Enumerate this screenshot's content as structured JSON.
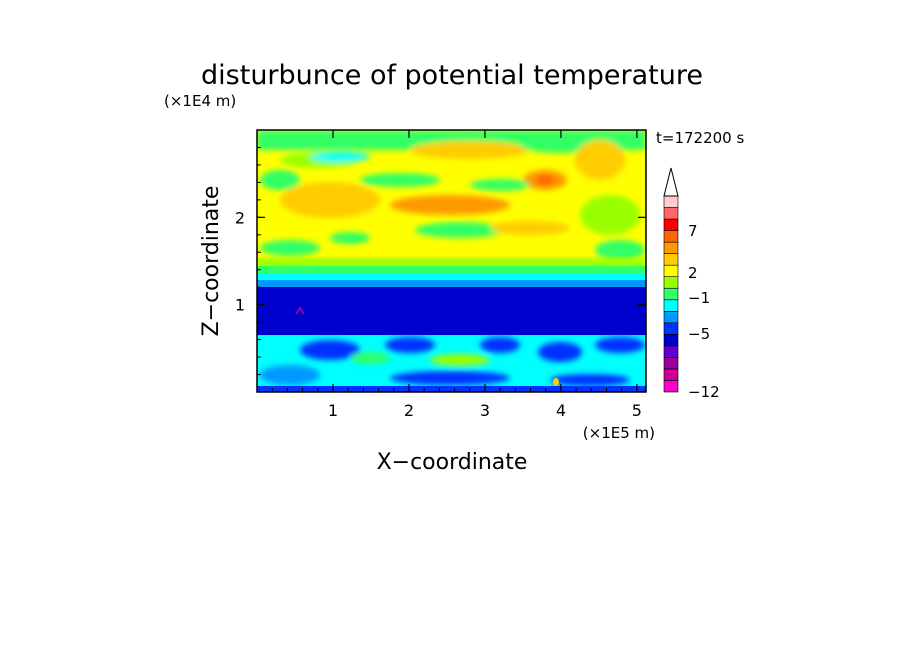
{
  "chart_data": {
    "type": "heatmap",
    "title": "disturbunce of potential temperature",
    "xlabel": "X−coordinate",
    "ylabel": "Z−coordinate",
    "x_unit": "(×1E5 m)",
    "y_unit": "(×1E4 m)",
    "time_label": "t=172200 s",
    "xlim": [
      0,
      5.12
    ],
    "ylim": [
      0,
      3.0
    ],
    "x_ticks": [
      1,
      2,
      3,
      4,
      5
    ],
    "y_ticks": [
      1,
      2
    ],
    "x_tick_labels": [
      "1",
      "2",
      "3",
      "4",
      "5"
    ],
    "y_tick_labels": [
      "1",
      "2"
    ],
    "colorbar": {
      "labels": [
        "−12",
        "−5",
        "−1",
        "2",
        "7"
      ],
      "colors": [
        "#ff00cc",
        "#cc0099",
        "#990099",
        "#6600cc",
        "#0000cc",
        "#0033ff",
        "#0099ff",
        "#00ffff",
        "#33ff66",
        "#99ff00",
        "#ffff00",
        "#ffcc00",
        "#ff9900",
        "#ff6600",
        "#ff0000",
        "#ff6666",
        "#ffcccc"
      ],
      "extend_max": true
    },
    "regions": [
      {
        "name": "upper layer",
        "z_range": [
          1.3,
          3.0
        ],
        "dominant": "warm (yellow/orange) with green bands"
      },
      {
        "name": "middle layer",
        "z_range": [
          0.6,
          1.3
        ],
        "dominant": "cold (dark blue)"
      },
      {
        "name": "lower layer",
        "z_range": [
          0.0,
          0.6
        ],
        "dominant": "cyan/blue mixed"
      }
    ]
  }
}
